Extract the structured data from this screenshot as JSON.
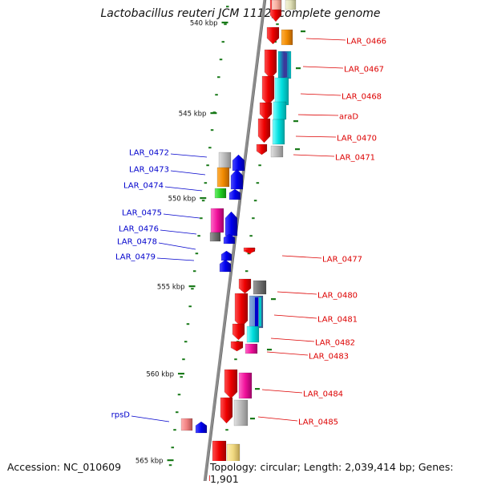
{
  "title": "Lactobacillus reuteri JCM 1112, complete genome",
  "footer": {
    "accession": "Accession: NC_010609",
    "topology": "Topology: circular; Length: 2,039,414 bp; Genes: 1,901"
  },
  "scale_labels": [
    "540 kbp",
    "545 kbp",
    "550 kbp",
    "555 kbp",
    "560 kbp",
    "565 kbp"
  ],
  "forward_gene_labels": [
    "LAR_0466",
    "LAR_0467",
    "LAR_0468",
    "araD",
    "LAR_0470",
    "LAR_0471",
    "LAR_0477",
    "LAR_0480",
    "LAR_0481",
    "LAR_0482",
    "LAR_0483",
    "LAR_0484",
    "LAR_0485"
  ],
  "reverse_gene_labels": [
    "LAR_0472",
    "LAR_0473",
    "LAR_0474",
    "LAR_0475",
    "LAR_0476",
    "LAR_0478",
    "LAR_0479",
    "rpsD"
  ],
  "colors": {
    "backbone": "#8c8c8c",
    "forward_label": "#dd0000",
    "reverse_label": "#0000cc",
    "scale_tick": "#1a7a1a",
    "forward_gene": "#ee0000",
    "reverse_gene": "#0000ee"
  }
}
